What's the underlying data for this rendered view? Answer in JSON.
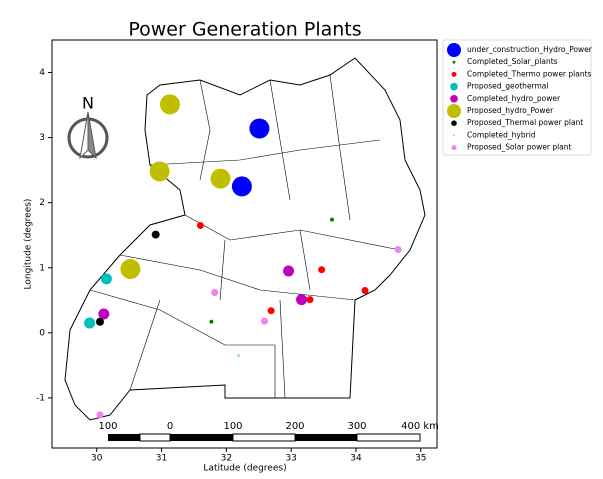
{
  "chart_data": {
    "type": "scatter",
    "title": "Power Generation Plants",
    "x_label": "Latitude (degrees)",
    "y_label": "Longitude (degrees)",
    "xlim": [
      29.31,
      35.25
    ],
    "ylim": [
      -1.77,
      4.5
    ],
    "xticks": [
      30,
      31,
      32,
      33,
      34,
      35
    ],
    "yticks": [
      -1,
      0,
      1,
      2,
      3,
      4
    ],
    "series": [
      {
        "name": "under_construction_Hydro_Power",
        "color": "#0000ff",
        "size": 10,
        "x": [
          32.24,
          32.51
        ],
        "y": [
          2.25,
          3.14
        ]
      },
      {
        "name": "Completed_Solar_plants",
        "color": "#008000",
        "size": 2,
        "x": [
          33.63,
          31.77
        ],
        "y": [
          1.74,
          0.17
        ]
      },
      {
        "name": "Completed_Thermo power plants",
        "color": "#ff0000",
        "size": 3.5,
        "x": [
          31.6,
          32.69,
          33.29,
          34.14,
          33.47
        ],
        "y": [
          1.65,
          0.34,
          0.51,
          0.65,
          0.97
        ]
      },
      {
        "name": "Proposed_geothermal",
        "color": "#00bfbf",
        "size": 5.5,
        "x": [
          30.15,
          29.89
        ],
        "y": [
          0.83,
          0.15
        ]
      },
      {
        "name": "Completed_hydro_power",
        "color": "#bf00bf",
        "size": 5.5,
        "x": [
          32.96,
          33.16,
          30.11
        ],
        "y": [
          0.95,
          0.51,
          0.29
        ]
      },
      {
        "name": "Proposed_hydro_Power",
        "color": "#bfbf00",
        "size": 10,
        "x": [
          31.91,
          30.52,
          31.13,
          30.97
        ],
        "y": [
          2.37,
          0.98,
          3.51,
          2.48
        ]
      },
      {
        "name": "Proposed_Thermal power plant",
        "color": "#000000",
        "size": 4,
        "x": [
          30.91,
          30.05
        ],
        "y": [
          1.51,
          0.17
        ]
      },
      {
        "name": "Completed_hybrid",
        "color": "#90ee90",
        "size": 1.5,
        "x": [
          32.19
        ],
        "y": [
          -0.35
        ]
      },
      {
        "name": "Proposed_Solar power plant",
        "color": "#ee82ee",
        "size": 3.5,
        "x": [
          31.82,
          32.59,
          34.65,
          30.05
        ],
        "y": [
          0.62,
          0.18,
          1.28,
          -1.26
        ]
      }
    ]
  },
  "north_label": "N",
  "scale_bar_labels": [
    "100",
    "0",
    "100",
    "200",
    "300",
    "400 km"
  ]
}
